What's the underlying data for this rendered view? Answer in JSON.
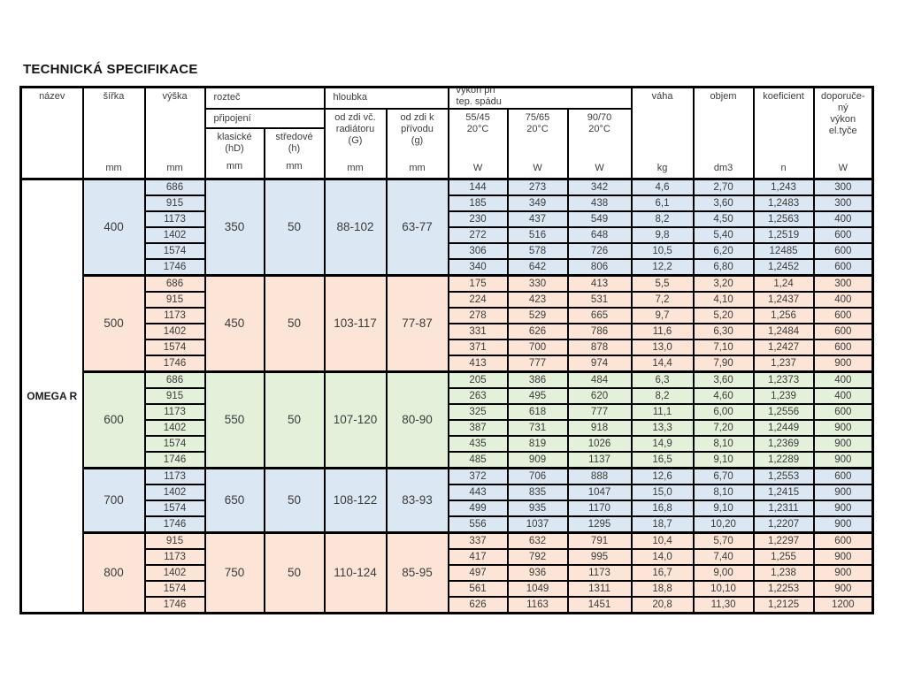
{
  "page_title": "TECHNICKÁ SPECIFIKACE",
  "colors": {
    "blue": "#dbe7f3",
    "salmon": "#fce4d6",
    "green": "#e3f0da"
  },
  "table": {
    "product_name": "OMEGA R",
    "header": {
      "nazev": "název",
      "sirka": "šířka",
      "vyska": "výška",
      "roztec": "rozteč",
      "pripojeni": "připojení",
      "klasicke": "klasické\n(hD)",
      "stredove": "středové\n(h)",
      "hloubka": "hloubka",
      "od_zdi_vc": "od zdi vč.\nradiátoru\n(G)",
      "od_zdi_k": "od zdi k\npřívodu\n(g)",
      "vykon_pri": "výkon při\ntep. spádu",
      "temp_5545": "55/45\n20°C",
      "temp_7565": "75/65\n20°C",
      "temp_9070": "90/70\n20°C",
      "vaha": "váha",
      "objem": "objem",
      "koeficient": "koeficient",
      "doporuceny": "doporuče-\nný\nvýkon\nel.tyče",
      "units": {
        "mm": "mm",
        "w": "W",
        "kg": "kg",
        "dm3": "dm3",
        "n": "n"
      }
    },
    "row_columns": [
      "výška mm",
      "výkon 55/45 W",
      "výkon 75/65 W",
      "výkon 90/70 W",
      "váha kg",
      "objem dm3",
      "koeficient n",
      "doporučený výkon el.tyče W"
    ],
    "groups": [
      {
        "width": "400",
        "color": "blue",
        "klasicke": "350",
        "stredove": "50",
        "hloubka_G": "88-102",
        "hloubka_g": "63-77",
        "rows": [
          [
            "686",
            "144",
            "273",
            "342",
            "4,6",
            "2,70",
            "1,243",
            "300"
          ],
          [
            "915",
            "185",
            "349",
            "438",
            "6,1",
            "3,60",
            "1,2483",
            "300"
          ],
          [
            "1173",
            "230",
            "437",
            "549",
            "8,2",
            "4,50",
            "1,2563",
            "400"
          ],
          [
            "1402",
            "272",
            "516",
            "648",
            "9,8",
            "5,40",
            "1,2519",
            "600"
          ],
          [
            "1574",
            "306",
            "578",
            "726",
            "10,5",
            "6,20",
            "12485",
            "600"
          ],
          [
            "1746",
            "340",
            "642",
            "806",
            "12,2",
            "6,80",
            "1,2452",
            "600"
          ]
        ]
      },
      {
        "width": "500",
        "color": "salmon",
        "klasicke": "450",
        "stredove": "50",
        "hloubka_G": "103-117",
        "hloubka_g": "77-87",
        "rows": [
          [
            "686",
            "175",
            "330",
            "413",
            "5,5",
            "3,20",
            "1,24",
            "300"
          ],
          [
            "915",
            "224",
            "423",
            "531",
            "7,2",
            "4,10",
            "1,2437",
            "400"
          ],
          [
            "1173",
            "278",
            "529",
            "665",
            "9,7",
            "5,20",
            "1,256",
            "600"
          ],
          [
            "1402",
            "331",
            "626",
            "786",
            "11,6",
            "6,30",
            "1,2484",
            "600"
          ],
          [
            "1574",
            "371",
            "700",
            "878",
            "13,0",
            "7,10",
            "1,2427",
            "600"
          ],
          [
            "1746",
            "413",
            "777",
            "974",
            "14,4",
            "7,90",
            "1,237",
            "900"
          ]
        ]
      },
      {
        "width": "600",
        "color": "green",
        "klasicke": "550",
        "stredove": "50",
        "hloubka_G": "107-120",
        "hloubka_g": "80-90",
        "rows": [
          [
            "686",
            "205",
            "386",
            "484",
            "6,3",
            "3,60",
            "1,2373",
            "400"
          ],
          [
            "915",
            "263",
            "495",
            "620",
            "8,2",
            "4,60",
            "1,239",
            "400"
          ],
          [
            "1173",
            "325",
            "618",
            "777",
            "11,1",
            "6,00",
            "1,2556",
            "600"
          ],
          [
            "1402",
            "387",
            "731",
            "918",
            "13,3",
            "7,20",
            "1,2449",
            "900"
          ],
          [
            "1574",
            "435",
            "819",
            "1026",
            "14,9",
            "8,10",
            "1,2369",
            "900"
          ],
          [
            "1746",
            "485",
            "909",
            "1137",
            "16,5",
            "9,10",
            "1,2289",
            "900"
          ]
        ]
      },
      {
        "width": "700",
        "color": "blue",
        "klasicke": "650",
        "stredove": "50",
        "hloubka_G": "108-122",
        "hloubka_g": "83-93",
        "rows": [
          [
            "1173",
            "372",
            "706",
            "888",
            "12,6",
            "6,70",
            "1,2553",
            "600"
          ],
          [
            "1402",
            "443",
            "835",
            "1047",
            "15,0",
            "8,10",
            "1,2415",
            "900"
          ],
          [
            "1574",
            "499",
            "935",
            "1170",
            "16,8",
            "9,10",
            "1,2311",
            "900"
          ],
          [
            "1746",
            "556",
            "1037",
            "1295",
            "18,7",
            "10,20",
            "1,2207",
            "900"
          ]
        ]
      },
      {
        "width": "800",
        "color": "salmon",
        "klasicke": "750",
        "stredove": "50",
        "hloubka_G": "110-124",
        "hloubka_g": "85-95",
        "rows": [
          [
            "915",
            "337",
            "632",
            "791",
            "10,4",
            "5,70",
            "1,2297",
            "600"
          ],
          [
            "1173",
            "417",
            "792",
            "995",
            "14,0",
            "7,40",
            "1,255",
            "900"
          ],
          [
            "1402",
            "497",
            "936",
            "1173",
            "16,7",
            "9,00",
            "1,238",
            "900"
          ],
          [
            "1574",
            "561",
            "1049",
            "1311",
            "18,8",
            "10,10",
            "1,2253",
            "900"
          ],
          [
            "1746",
            "626",
            "1163",
            "1451",
            "20,8",
            "11,30",
            "1,2125",
            "1200"
          ]
        ]
      }
    ]
  }
}
